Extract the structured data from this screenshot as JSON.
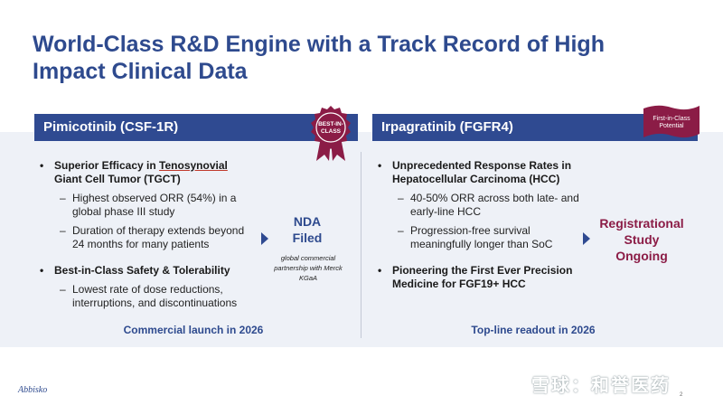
{
  "title": "World-Class R&D Engine with a Track Record of High Impact Clinical Data",
  "left": {
    "header": "Pimicotinib (CSF-1R)",
    "badge": {
      "line1": "BEST-IN-",
      "line2": "CLASS",
      "color": "#8b1c46"
    },
    "bullet1": {
      "text_a": "Superior Efficacy in ",
      "text_u": "Tenosynovial",
      "text_b": " Giant Cell Tumor (TGCT)",
      "sub1": "Highest observed ORR (54%) in a global phase III study",
      "sub2": "Duration of therapy extends beyond 24 months for many patients"
    },
    "bullet2": {
      "text": "Best-in-Class Safety & Tolerability",
      "sub1": "Lowest rate of dose reductions, interruptions, and discontinuations"
    },
    "callout": {
      "line1": "NDA",
      "line2": "Filed"
    },
    "note": "global commercial partnership with Merck KGaA",
    "footer": "Commercial launch in 2026"
  },
  "right": {
    "header": "Irpagratinib (FGFR4)",
    "badge": {
      "line1": "First-in-Class",
      "line2": "Potential",
      "color": "#8b1c46"
    },
    "bullet1": {
      "text": "Unprecedented Response Rates in Hepatocellular Carcinoma (HCC)",
      "sub1": "40-50% ORR across both late- and early-line HCC",
      "sub2": "Progression-free survival meaningfully longer than SoC"
    },
    "bullet2": {
      "text": "Pioneering the First Ever Precision Medicine for FGF19+ HCC"
    },
    "callout": {
      "line1": "Registrational",
      "line2": "Study",
      "line3": "Ongoing"
    },
    "footer": "Top-line readout in 2026"
  },
  "logo": "Abbisko",
  "page_number": "2",
  "watermark": "雪球：和誉医药",
  "colors": {
    "primary": "#2f4a91",
    "accent": "#8b1c46",
    "panel": "#eef1f7"
  }
}
